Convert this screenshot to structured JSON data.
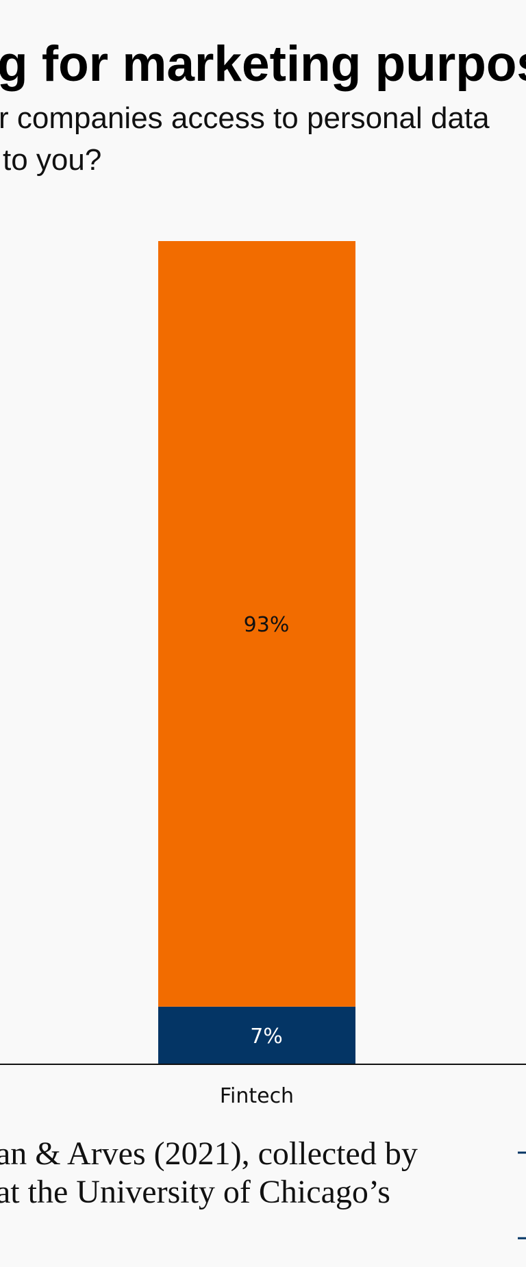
{
  "chart_data": {
    "type": "stacked-bar",
    "title": "g for marketing purpos",
    "subtitle": [
      "r companies access to personal data",
      "to you?"
    ],
    "source": [
      "an & Arves (2021), collected by",
      "at the University of Chicago’s"
    ],
    "categories": [
      "Fintech"
    ],
    "series": [
      {
        "color": "#043565",
        "values": [
          7
        ],
        "value_labels": [
          "7%"
        ],
        "label_color": "#ffffff"
      },
      {
        "color": "#f26c00",
        "values": [
          93
        ],
        "value_labels": [
          "93%"
        ],
        "label_color": "#111111"
      }
    ],
    "ylim": [
      0,
      100
    ]
  }
}
